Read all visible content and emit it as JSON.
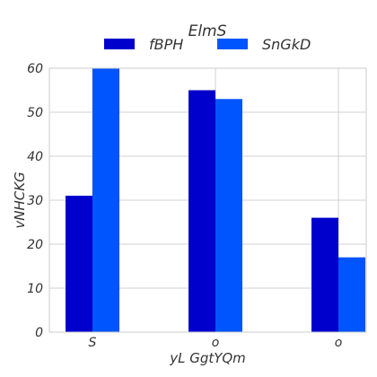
{
  "chart_data": {
    "type": "bar",
    "title": "",
    "legend": {
      "title": "ElmS",
      "position": "top-center"
    },
    "categories": [
      "S",
      "o",
      "o"
    ],
    "series": [
      {
        "name": "fBPH",
        "color": "#0000cc",
        "values": [
          31,
          55,
          26
        ]
      },
      {
        "name": "SnGkD",
        "color": "#0055ff",
        "values": [
          60,
          53,
          17
        ]
      }
    ],
    "xlabel": "yL GgtYQm",
    "ylabel": "vNHCKG",
    "ylim": [
      0,
      60
    ],
    "yticks": [
      0,
      10,
      20,
      30,
      40,
      50,
      60
    ],
    "grid": true
  }
}
